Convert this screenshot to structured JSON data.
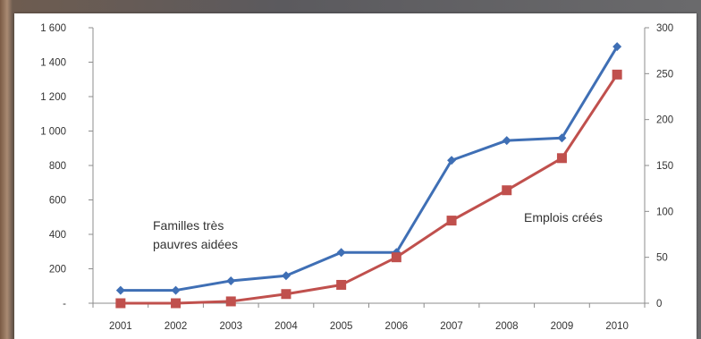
{
  "chart_data": {
    "type": "line",
    "title": "",
    "x": [
      "2001",
      "2002",
      "2003",
      "2004",
      "2005",
      "2006",
      "2007",
      "2008",
      "2009",
      "2010"
    ],
    "y_left": {
      "ylim": [
        0,
        1600
      ],
      "ticks": [
        "-",
        "200",
        "400",
        "600",
        "800",
        "1 000",
        "1 200",
        "1 400",
        "1 600"
      ]
    },
    "y_right": {
      "ylim": [
        0,
        300
      ],
      "ticks": [
        "0",
        "50",
        "100",
        "150",
        "200",
        "250",
        "300"
      ]
    },
    "grid": false,
    "legend": "none",
    "series": [
      {
        "axis": "left",
        "color": "#3f6fb5",
        "marker": "diamond",
        "values": [
          75,
          75,
          130,
          160,
          295,
          295,
          830,
          945,
          960,
          1490
        ]
      },
      {
        "axis": "right",
        "color": "#c0504d",
        "marker": "square",
        "values": [
          0,
          0,
          2,
          10,
          20,
          50,
          90,
          123,
          158,
          249
        ]
      }
    ],
    "annotations": [
      {
        "series": 0,
        "lines": [
          "Familles très",
          "pauvres aidées"
        ]
      },
      {
        "series": 1,
        "lines": [
          "Emplois créés"
        ]
      }
    ]
  }
}
